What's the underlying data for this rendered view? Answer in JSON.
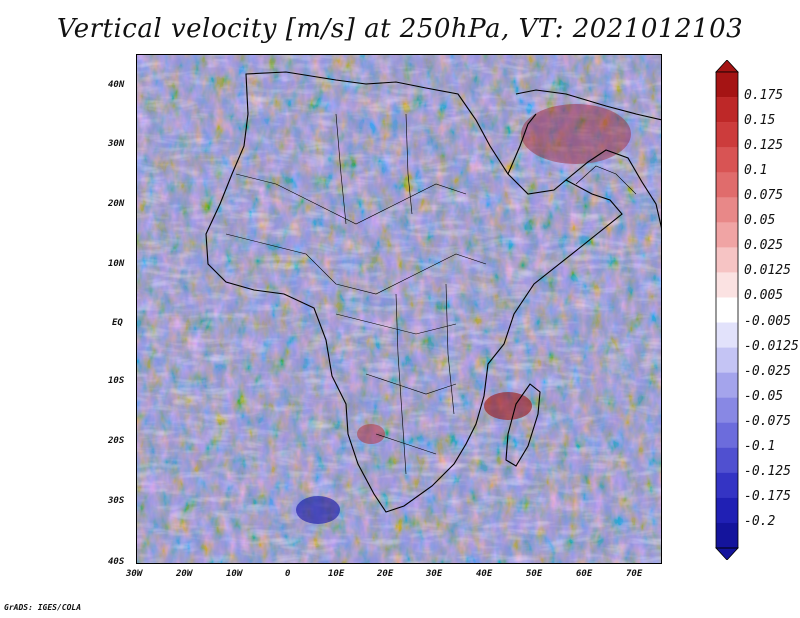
{
  "title": "Vertical velocity [m/s] at 250hPa, VT: 2021012103",
  "map": {
    "lon_labels": [
      "30W",
      "20W",
      "10W",
      "0",
      "10E",
      "20E",
      "30E",
      "40E",
      "50E",
      "60E",
      "70E"
    ],
    "lat_labels": [
      "40N",
      "30N",
      "20N",
      "10N",
      "EQ",
      "10S",
      "20S",
      "30S",
      "40S"
    ]
  },
  "colorbar": {
    "levels": [
      "0.175",
      "0.15",
      "0.125",
      "0.1",
      "0.075",
      "0.05",
      "0.025",
      "0.0125",
      "0.005",
      "-0.005",
      "-0.0125",
      "-0.025",
      "-0.05",
      "-0.075",
      "-0.1",
      "-0.125",
      "-0.175",
      "-0.2"
    ],
    "colors": [
      "#a51414",
      "#be2828",
      "#cc3c3c",
      "#d85454",
      "#e06c6c",
      "#e88888",
      "#f0a4a4",
      "#f6c4c4",
      "#fbe2e2",
      "#ffffff",
      "#e2e2fb",
      "#c4c4f4",
      "#a4a4ec",
      "#8888e4",
      "#6c6cdc",
      "#5050d0",
      "#3434c4",
      "#2020b4",
      "#14149c"
    ]
  },
  "credit": "GrADS: IGES/COLA"
}
